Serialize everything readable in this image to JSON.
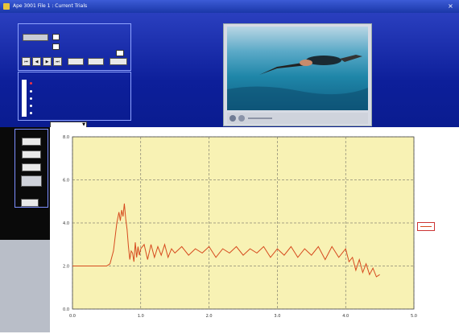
{
  "window": {
    "title": "Ape 3001 File 1 : Current Trials",
    "close_glyph": "×"
  },
  "controls": {
    "header_text": "",
    "option_a_label": "",
    "option_b_label": "",
    "value_field_a": "",
    "value_field_b": "",
    "time_display": "",
    "step_value": "",
    "transport": {
      "first_glyph": "⏮",
      "prev_glyph": "◀",
      "play_glyph": "▶",
      "next_glyph": "⏭"
    },
    "action_buttons": [
      "",
      "",
      ""
    ]
  },
  "channels": {
    "header_text": "",
    "items": [
      "",
      "",
      "",
      "",
      ""
    ]
  },
  "side_buttons": [
    "",
    "",
    "",
    "",
    ""
  ],
  "channel_select": {
    "value": ""
  },
  "chart_data": {
    "type": "line",
    "title": "",
    "xlabel": "",
    "ylabel": "",
    "xlim": [
      0,
      5
    ],
    "ylim": [
      0,
      8
    ],
    "x_ticks": [
      "0.0",
      "1.0",
      "2.0",
      "3.0",
      "4.0",
      "5.0"
    ],
    "y_ticks": [
      "0.0",
      "2.0",
      "4.0",
      "6.0",
      "8.0"
    ],
    "grid": true,
    "background": "#f8f2b4",
    "line_color": "#d64a1e",
    "series": [
      {
        "x": [
          0,
          0.2,
          0.4,
          0.5,
          0.55,
          0.6,
          0.65,
          0.68,
          0.7,
          0.72,
          0.74,
          0.76,
          0.78,
          0.8,
          0.82,
          0.84,
          0.86,
          0.88,
          0.9,
          0.92,
          0.94,
          0.96,
          0.98,
          1.0,
          1.05,
          1.1,
          1.15,
          1.2,
          1.25,
          1.3,
          1.35,
          1.4,
          1.45,
          1.5,
          1.6,
          1.7,
          1.8,
          1.9,
          2.0,
          2.1,
          2.2,
          2.3,
          2.4,
          2.5,
          2.6,
          2.7,
          2.8,
          2.9,
          3.0,
          3.1,
          3.2,
          3.3,
          3.4,
          3.5,
          3.6,
          3.7,
          3.8,
          3.9,
          4.0,
          4.05,
          4.1,
          4.15,
          4.2,
          4.25,
          4.3,
          4.35,
          4.4,
          4.45,
          4.5
        ],
        "y": [
          2.0,
          2.0,
          2.0,
          2.0,
          2.1,
          2.7,
          4.0,
          4.5,
          4.1,
          4.6,
          4.3,
          4.9,
          4.2,
          3.7,
          2.9,
          2.3,
          2.7,
          2.6,
          2.2,
          3.1,
          2.4,
          2.9,
          2.5,
          2.8,
          3.0,
          2.3,
          3.0,
          2.4,
          2.9,
          2.5,
          3.0,
          2.4,
          2.8,
          2.6,
          2.9,
          2.5,
          2.8,
          2.6,
          2.9,
          2.4,
          2.8,
          2.6,
          2.9,
          2.5,
          2.8,
          2.6,
          2.9,
          2.4,
          2.8,
          2.5,
          2.9,
          2.4,
          2.8,
          2.5,
          2.9,
          2.3,
          2.9,
          2.4,
          2.8,
          2.2,
          2.4,
          1.8,
          2.3,
          1.7,
          2.1,
          1.6,
          1.9,
          1.5,
          1.6
        ]
      }
    ]
  }
}
